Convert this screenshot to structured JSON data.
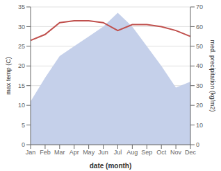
{
  "chart_data": {
    "type": "line",
    "categories": [
      "Jan",
      "Feb",
      "Mar",
      "Apr",
      "May",
      "Jun",
      "Jul",
      "Aug",
      "Sep",
      "Oct",
      "Nov",
      "Dec"
    ],
    "series": [
      {
        "type": "area",
        "color": "#c5d0ea",
        "axis": "y2",
        "values": [
          22,
          34,
          45,
          50,
          55,
          60,
          67,
          60,
          50,
          40,
          29,
          32
        ]
      },
      {
        "type": "line",
        "color": "#c0504d",
        "values": [
          26.5,
          28.0,
          31.0,
          31.5,
          31.5,
          31.0,
          29.0,
          30.5,
          30.5,
          30.0,
          29.0,
          27.5
        ]
      }
    ],
    "xlabel": "date (month)",
    "ylabel": "max temp (C)",
    "y2label": "med. precipitation (kg/m2)",
    "ylim": [
      0,
      35
    ],
    "yticks": [
      0,
      5,
      10,
      15,
      20,
      25,
      30,
      35
    ],
    "y2lim": [
      0,
      70
    ],
    "y2ticks": [
      0,
      10,
      20,
      30,
      40,
      50,
      60,
      70
    ],
    "grid": true
  }
}
